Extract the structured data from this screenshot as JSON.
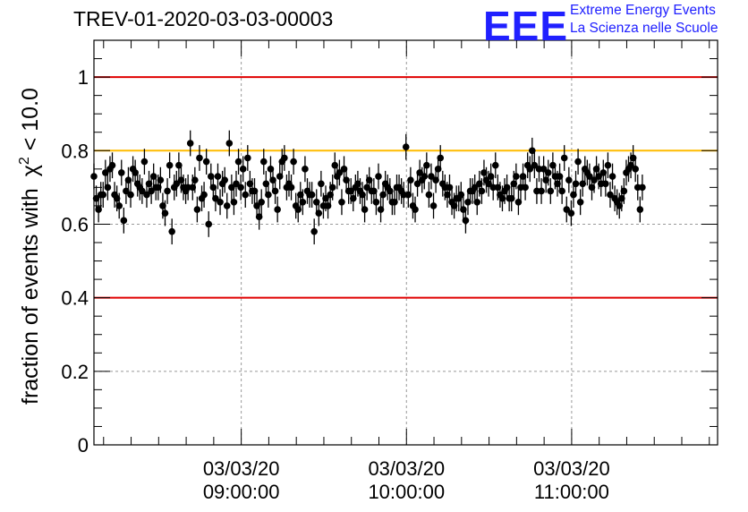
{
  "header": {
    "title": "TREV-01-2020-03-03-00003",
    "logo": "EEE",
    "logo_line1": "Extreme Energy Events",
    "logo_line2": "La Scienza nelle Scuole"
  },
  "chart_data": {
    "type": "scatter",
    "title": "TREV-01-2020-03-03-00003",
    "ylabel": "fraction of events with",
    "ylabel_symbol": "χ",
    "ylabel_sup": "2",
    "ylabel_tail": " < 10.0",
    "ylim": [
      0,
      1.1
    ],
    "yticks": [
      0,
      0.2,
      0.4,
      0.6,
      0.8,
      1
    ],
    "ytick_labels": [
      "0",
      "0.2",
      "0.4",
      "0.6",
      "0.8",
      "1"
    ],
    "xlim": [
      "2020-03-03 08:06:30",
      "2020-03-03 11:53:00"
    ],
    "xticks": [
      {
        "time": "2020-03-03 09:00:00",
        "line1": "03/03/20",
        "line2": "09:00:00"
      },
      {
        "time": "2020-03-03 10:00:00",
        "line1": "03/03/20",
        "line2": "10:00:00"
      },
      {
        "time": "2020-03-03 11:00:00",
        "line1": "03/03/20",
        "line2": "11:00:00"
      }
    ],
    "grid": true,
    "reference_lines": [
      {
        "y": 1.0,
        "color": "#e00000"
      },
      {
        "y": 0.4,
        "color": "#e00000"
      },
      {
        "y": 0.8,
        "color": "#ffbb00"
      }
    ],
    "marker_color": "#000000",
    "error_bar": 0.035,
    "start_time": "2020-03-03 08:06:30",
    "step_seconds": 50,
    "series": [
      {
        "values": [
          0.73,
          0.67,
          0.64,
          0.68,
          0.68,
          0.74,
          0.7,
          0.75,
          0.76,
          0.68,
          0.67,
          0.65,
          0.74,
          0.61,
          0.69,
          0.72,
          0.68,
          0.75,
          0.74,
          0.71,
          0.7,
          0.69,
          0.77,
          0.68,
          0.71,
          0.69,
          0.73,
          0.7,
          0.7,
          0.72,
          0.65,
          0.63,
          0.69,
          0.76,
          0.58,
          0.7,
          0.71,
          0.76,
          0.72,
          0.7,
          0.69,
          0.7,
          0.82,
          0.7,
          0.72,
          0.64,
          0.78,
          0.67,
          0.68,
          0.77,
          0.6,
          0.73,
          0.7,
          0.67,
          0.73,
          0.66,
          0.71,
          0.72,
          0.65,
          0.82,
          0.7,
          0.66,
          0.71,
          0.77,
          0.7,
          0.75,
          0.68,
          0.78,
          0.71,
          0.69,
          0.69,
          0.65,
          0.62,
          0.66,
          0.77,
          0.71,
          0.68,
          0.75,
          0.72,
          0.69,
          0.64,
          0.73,
          0.77,
          0.78,
          0.7,
          0.71,
          0.7,
          0.77,
          0.65,
          0.64,
          0.68,
          0.66,
          0.75,
          0.69,
          0.68,
          0.68,
          0.58,
          0.66,
          0.63,
          0.71,
          0.65,
          0.67,
          0.65,
          0.68,
          0.7,
          0.76,
          0.73,
          0.74,
          0.66,
          0.75,
          0.72,
          0.69,
          0.69,
          0.67,
          0.7,
          0.71,
          0.69,
          0.68,
          0.64,
          0.7,
          0.72,
          0.69,
          0.69,
          0.66,
          0.73,
          0.64,
          0.68,
          0.71,
          0.7,
          0.69,
          0.66,
          0.66,
          0.7,
          0.7,
          0.69,
          0.68,
          0.81,
          0.68,
          0.72,
          0.65,
          0.64,
          0.71,
          0.74,
          0.72,
          0.73,
          0.76,
          0.68,
          0.73,
          0.65,
          0.72,
          0.75,
          0.78,
          0.71,
          0.7,
          0.68,
          0.7,
          0.66,
          0.65,
          0.67,
          0.67,
          0.68,
          0.64,
          0.61,
          0.66,
          0.69,
          0.69,
          0.7,
          0.66,
          0.71,
          0.69,
          0.74,
          0.72,
          0.71,
          0.73,
          0.7,
          0.76,
          0.7,
          0.68,
          0.67,
          0.69,
          0.7,
          0.67,
          0.67,
          0.71,
          0.73,
          0.66,
          0.7,
          0.73,
          0.7,
          0.76,
          0.75,
          0.8,
          0.76,
          0.69,
          0.75,
          0.69,
          0.75,
          0.72,
          0.74,
          0.69,
          0.76,
          0.73,
          0.71,
          0.73,
          0.69,
          0.78,
          0.64,
          0.72,
          0.63,
          0.68,
          0.71,
          0.77,
          0.66,
          0.71,
          0.75,
          0.74,
          0.73,
          0.7,
          0.72,
          0.75,
          0.73,
          0.71,
          0.74,
          0.71,
          0.76,
          0.68,
          0.73,
          0.67,
          0.66,
          0.65,
          0.67,
          0.69,
          0.74,
          0.75,
          0.76,
          0.78,
          0.75,
          0.7,
          0.64,
          0.7
        ]
      }
    ]
  }
}
